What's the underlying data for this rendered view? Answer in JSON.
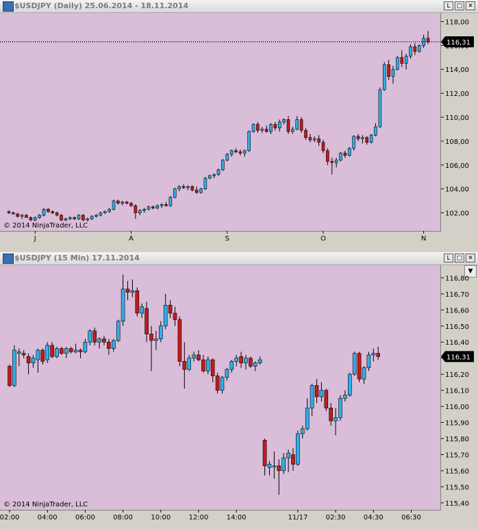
{
  "charts": [
    {
      "title": "$USDJPY (Daily)  25.06.2014 - 18.11.2014",
      "window_buttons": [
        "L",
        "□",
        "✕"
      ],
      "copyright": "© 2014 NinjaTrader, LLC",
      "last_price_label": "116,31",
      "y_tick_labels": [
        "102,00",
        "104,00",
        "106,00",
        "108,00",
        "110,00",
        "112,00",
        "114,00",
        "116,00",
        "118,00"
      ],
      "x_tick_labels": [
        "J",
        "A",
        "S",
        "O",
        "N"
      ],
      "colors": {
        "background": "#dabdd8",
        "up": "#32aee8",
        "down": "#c11c1c",
        "wick": "#000000",
        "price_line": "#000000",
        "panel": "#d4d0c8"
      }
    },
    {
      "title": "$USDJPY (15 Min)  17.11.2014",
      "window_buttons": [
        "L",
        "□",
        "✕"
      ],
      "dropdown_icon": "chevron-down-icon",
      "copyright": "© 2014 NinjaTrader, LLC",
      "last_price_label": "116,31",
      "y_tick_labels": [
        "115,40",
        "115,50",
        "115,60",
        "115,70",
        "115,80",
        "115,90",
        "116,00",
        "116,10",
        "116,20",
        "116,30",
        "116,40",
        "116,50",
        "116,60",
        "116,70",
        "116,80"
      ],
      "x_tick_labels": [
        "02:00",
        "04:00",
        "06:00",
        "08:00",
        "10:00",
        "12:00",
        "14:00",
        "11/17",
        "02:30",
        "04:30",
        "06:30"
      ],
      "colors": {
        "background": "#dabdd8",
        "up": "#32aee8",
        "down": "#c11c1c",
        "wick": "#000000",
        "panel": "#d4d0c8"
      }
    }
  ],
  "chart_data": [
    {
      "type": "candlestick",
      "title": "$USDJPY (Daily)  25.06.2014 - 18.11.2014",
      "y_range": [
        100.6,
        118.6
      ],
      "price_line": 116.31,
      "x_ticks": [
        {
          "label": "J",
          "index": 6
        },
        {
          "label": "A",
          "index": 28
        },
        {
          "label": "S",
          "index": 50
        },
        {
          "label": "O",
          "index": 72
        },
        {
          "label": "N",
          "index": 95
        }
      ],
      "candles": [
        [
          102.1,
          102.2,
          101.9,
          102.0
        ],
        [
          102.0,
          102.1,
          101.9,
          101.9
        ],
        [
          101.9,
          102.0,
          101.6,
          101.7
        ],
        [
          101.7,
          101.9,
          101.5,
          101.8
        ],
        [
          101.8,
          101.9,
          101.6,
          101.6
        ],
        [
          101.6,
          101.7,
          101.3,
          101.4
        ],
        [
          101.4,
          101.7,
          101.3,
          101.6
        ],
        [
          101.6,
          101.9,
          101.5,
          101.8
        ],
        [
          101.8,
          102.4,
          101.7,
          102.3
        ],
        [
          102.3,
          102.4,
          102.0,
          102.1
        ],
        [
          102.1,
          102.2,
          101.9,
          102.0
        ],
        [
          102.0,
          102.1,
          101.7,
          101.8
        ],
        [
          101.8,
          101.9,
          101.3,
          101.4
        ],
        [
          101.4,
          101.6,
          101.3,
          101.5
        ],
        [
          101.5,
          101.7,
          101.4,
          101.6
        ],
        [
          101.6,
          101.7,
          101.4,
          101.5
        ],
        [
          101.5,
          101.9,
          101.4,
          101.8
        ],
        [
          101.8,
          101.9,
          101.3,
          101.4
        ],
        [
          101.4,
          101.6,
          101.3,
          101.5
        ],
        [
          101.5,
          101.8,
          101.4,
          101.7
        ],
        [
          101.7,
          101.9,
          101.6,
          101.8
        ],
        [
          101.8,
          102.1,
          101.7,
          102.0
        ],
        [
          102.0,
          102.2,
          101.9,
          102.1
        ],
        [
          102.1,
          102.4,
          102.0,
          102.3
        ],
        [
          102.3,
          103.1,
          102.2,
          103.0
        ],
        [
          103.0,
          103.1,
          102.7,
          102.8
        ],
        [
          102.8,
          103.0,
          102.6,
          102.9
        ],
        [
          102.9,
          103.0,
          102.7,
          102.8
        ],
        [
          102.8,
          102.9,
          102.5,
          102.6
        ],
        [
          102.6,
          102.7,
          101.5,
          102.0
        ],
        [
          102.0,
          102.3,
          101.8,
          102.2
        ],
        [
          102.2,
          102.4,
          102.0,
          102.3
        ],
        [
          102.3,
          102.6,
          102.2,
          102.5
        ],
        [
          102.5,
          102.6,
          102.3,
          102.4
        ],
        [
          102.4,
          102.7,
          102.3,
          102.6
        ],
        [
          102.6,
          102.8,
          102.4,
          102.7
        ],
        [
          102.7,
          102.9,
          102.5,
          102.6
        ],
        [
          102.6,
          103.4,
          102.5,
          103.3
        ],
        [
          103.3,
          104.1,
          103.2,
          104.0
        ],
        [
          104.0,
          104.3,
          103.8,
          104.2
        ],
        [
          104.2,
          104.4,
          104.0,
          104.1
        ],
        [
          104.1,
          104.3,
          103.9,
          104.2
        ],
        [
          104.2,
          104.3,
          103.8,
          103.9
        ],
        [
          103.9,
          104.2,
          103.6,
          103.7
        ],
        [
          103.7,
          104.1,
          103.6,
          104.0
        ],
        [
          104.0,
          105.0,
          103.9,
          104.9
        ],
        [
          104.9,
          105.2,
          104.8,
          105.1
        ],
        [
          105.1,
          105.3,
          104.9,
          105.2
        ],
        [
          105.2,
          105.7,
          105.1,
          105.6
        ],
        [
          105.6,
          106.5,
          105.5,
          106.4
        ],
        [
          106.4,
          107.0,
          106.3,
          106.9
        ],
        [
          106.9,
          107.3,
          106.7,
          107.2
        ],
        [
          107.2,
          107.4,
          107.0,
          107.1
        ],
        [
          107.1,
          107.3,
          106.8,
          107.0
        ],
        [
          107.0,
          107.3,
          106.7,
          107.2
        ],
        [
          107.2,
          108.9,
          107.1,
          108.8
        ],
        [
          108.8,
          109.5,
          108.7,
          109.4
        ],
        [
          109.4,
          109.6,
          108.7,
          108.9
        ],
        [
          108.9,
          109.2,
          108.7,
          109.0
        ],
        [
          109.0,
          109.3,
          108.7,
          108.8
        ],
        [
          108.8,
          109.5,
          108.6,
          109.4
        ],
        [
          109.4,
          109.6,
          108.9,
          109.1
        ],
        [
          109.1,
          109.8,
          108.8,
          109.6
        ],
        [
          109.6,
          109.9,
          109.4,
          109.8
        ],
        [
          109.8,
          110.1,
          108.6,
          108.8
        ],
        [
          108.8,
          109.2,
          108.6,
          109.0
        ],
        [
          109.0,
          110.1,
          108.9,
          109.8
        ],
        [
          109.8,
          110.0,
          108.7,
          108.9
        ],
        [
          108.9,
          109.1,
          108.1,
          108.3
        ],
        [
          108.3,
          108.6,
          107.9,
          108.1
        ],
        [
          108.1,
          108.4,
          107.9,
          108.2
        ],
        [
          108.2,
          108.5,
          107.6,
          107.9
        ],
        [
          107.9,
          108.1,
          107.0,
          107.2
        ],
        [
          107.2,
          107.4,
          106.0,
          106.3
        ],
        [
          106.3,
          106.6,
          105.2,
          106.2
        ],
        [
          106.2,
          106.6,
          105.8,
          106.4
        ],
        [
          106.4,
          107.1,
          106.3,
          107.0
        ],
        [
          107.0,
          107.2,
          106.6,
          106.8
        ],
        [
          106.8,
          107.5,
          106.7,
          107.4
        ],
        [
          107.4,
          108.5,
          107.2,
          108.4
        ],
        [
          108.4,
          108.6,
          108.0,
          108.2
        ],
        [
          108.2,
          108.5,
          107.8,
          108.3
        ],
        [
          108.3,
          108.4,
          107.7,
          107.9
        ],
        [
          107.9,
          108.6,
          107.8,
          108.5
        ],
        [
          108.5,
          109.5,
          108.4,
          109.2
        ],
        [
          109.2,
          112.5,
          109.1,
          112.3
        ],
        [
          112.3,
          114.6,
          112.2,
          114.4
        ],
        [
          114.4,
          114.8,
          113.1,
          113.4
        ],
        [
          113.4,
          114.3,
          112.8,
          114.0
        ],
        [
          114.0,
          115.1,
          113.9,
          115.0
        ],
        [
          115.0,
          115.6,
          114.2,
          114.5
        ],
        [
          114.5,
          115.3,
          114.0,
          115.1
        ],
        [
          115.1,
          116.1,
          114.9,
          115.9
        ],
        [
          115.9,
          116.2,
          115.2,
          115.5
        ],
        [
          115.5,
          116.1,
          115.4,
          116.0
        ],
        [
          116.0,
          116.9,
          115.8,
          116.6
        ],
        [
          116.6,
          117.2,
          116.1,
          116.31
        ]
      ]
    },
    {
      "type": "candlestick",
      "title": "$USDJPY (15 Min)  17.11.2014",
      "y_range": [
        115.365,
        116.87
      ],
      "price_line": 116.31,
      "x_ticks": [
        {
          "label": "02:00",
          "index": 0
        },
        {
          "label": "04:00",
          "index": 8
        },
        {
          "label": "06:00",
          "index": 16
        },
        {
          "label": "08:00",
          "index": 24
        },
        {
          "label": "10:00",
          "index": 32
        },
        {
          "label": "12:00",
          "index": 40
        },
        {
          "label": "14:00",
          "index": 48
        },
        {
          "label": "11/17",
          "index": 61
        },
        {
          "label": "02:30",
          "index": 69
        },
        {
          "label": "04:30",
          "index": 77
        },
        {
          "label": "06:30",
          "index": 85
        }
      ],
      "candles": [
        [
          116.25,
          116.26,
          116.12,
          116.13
        ],
        [
          116.13,
          116.38,
          116.12,
          116.35
        ],
        [
          116.33,
          116.36,
          116.25,
          116.34
        ],
        [
          116.33,
          116.35,
          116.3,
          116.32
        ],
        [
          116.31,
          116.33,
          116.2,
          116.27
        ],
        [
          116.27,
          116.32,
          116.24,
          116.3
        ],
        [
          116.29,
          116.36,
          116.21,
          116.35
        ],
        [
          116.35,
          116.36,
          116.26,
          116.28
        ],
        [
          116.29,
          116.4,
          116.27,
          116.38
        ],
        [
          116.38,
          116.4,
          116.3,
          116.31
        ],
        [
          116.31,
          116.37,
          116.3,
          116.36
        ],
        [
          116.36,
          116.37,
          116.32,
          116.33
        ],
        [
          116.33,
          116.37,
          116.3,
          116.36
        ],
        [
          116.36,
          116.37,
          116.33,
          116.34
        ],
        [
          116.34,
          116.39,
          116.33,
          116.35
        ],
        [
          116.35,
          116.36,
          116.3,
          116.34
        ],
        [
          116.34,
          116.42,
          116.33,
          116.4
        ],
        [
          116.4,
          116.48,
          116.38,
          116.47
        ],
        [
          116.47,
          116.49,
          116.38,
          116.4
        ],
        [
          116.4,
          116.43,
          116.36,
          116.42
        ],
        [
          116.42,
          116.44,
          116.38,
          116.4
        ],
        [
          116.4,
          116.42,
          116.32,
          116.36
        ],
        [
          116.36,
          116.42,
          116.34,
          116.41
        ],
        [
          116.41,
          116.54,
          116.4,
          116.53
        ],
        [
          116.53,
          116.82,
          116.5,
          116.73
        ],
        [
          116.73,
          116.78,
          116.66,
          116.71
        ],
        [
          116.71,
          116.79,
          116.68,
          116.72
        ],
        [
          116.72,
          116.74,
          116.56,
          116.58
        ],
        [
          116.58,
          116.64,
          116.55,
          116.62
        ],
        [
          116.61,
          116.65,
          116.4,
          116.45
        ],
        [
          116.45,
          116.5,
          116.22,
          116.41
        ],
        [
          116.41,
          116.47,
          116.35,
          116.42
        ],
        [
          116.42,
          116.53,
          116.4,
          116.5
        ],
        [
          116.5,
          116.7,
          116.48,
          116.63
        ],
        [
          116.63,
          116.66,
          116.55,
          116.58
        ],
        [
          116.58,
          116.62,
          116.5,
          116.54
        ],
        [
          116.54,
          116.56,
          116.25,
          116.28
        ],
        [
          116.28,
          116.4,
          116.11,
          116.23
        ],
        [
          116.23,
          116.32,
          116.22,
          116.3
        ],
        [
          116.3,
          116.34,
          116.28,
          116.32
        ],
        [
          116.32,
          116.35,
          116.28,
          116.29
        ],
        [
          116.29,
          116.32,
          116.21,
          116.22
        ],
        [
          116.22,
          116.31,
          116.2,
          116.29
        ],
        [
          116.29,
          116.3,
          116.15,
          116.19
        ],
        [
          116.19,
          116.21,
          116.08,
          116.1
        ],
        [
          116.1,
          116.19,
          116.08,
          116.18
        ],
        [
          116.18,
          116.24,
          116.16,
          116.23
        ],
        [
          116.23,
          116.29,
          116.21,
          116.28
        ],
        [
          116.28,
          116.32,
          116.25,
          116.3
        ],
        [
          116.31,
          116.34,
          116.24,
          116.27
        ],
        [
          116.27,
          116.32,
          116.23,
          116.3
        ],
        [
          116.3,
          116.31,
          116.24,
          116.25
        ],
        [
          116.25,
          116.28,
          116.22,
          116.27
        ],
        [
          116.27,
          116.31,
          116.26,
          116.29
        ],
        [
          115.79,
          115.8,
          115.57,
          115.63
        ],
        [
          115.62,
          115.66,
          115.57,
          115.64
        ],
        [
          115.63,
          115.72,
          115.55,
          115.63
        ],
        [
          115.63,
          115.67,
          115.45,
          115.6
        ],
        [
          115.6,
          115.71,
          115.58,
          115.68
        ],
        [
          115.68,
          115.73,
          115.59,
          115.71
        ],
        [
          115.7,
          115.74,
          115.6,
          115.64
        ],
        [
          115.64,
          115.85,
          115.63,
          115.83
        ],
        [
          115.83,
          115.88,
          115.8,
          115.86
        ],
        [
          115.86,
          116.05,
          115.85,
          115.99
        ],
        [
          115.99,
          116.14,
          115.94,
          116.13
        ],
        [
          116.13,
          116.17,
          116.02,
          116.06
        ],
        [
          116.06,
          116.15,
          116.03,
          116.1
        ],
        [
          116.1,
          116.11,
          115.97,
          115.99
        ],
        [
          115.99,
          116.02,
          115.88,
          115.91
        ],
        [
          115.91,
          115.99,
          115.82,
          115.93
        ],
        [
          115.93,
          116.07,
          115.91,
          116.05
        ],
        [
          116.05,
          116.1,
          116.03,
          116.07
        ],
        [
          116.07,
          116.21,
          116.06,
          116.2
        ],
        [
          116.2,
          116.34,
          116.19,
          116.33
        ],
        [
          116.33,
          116.34,
          116.15,
          116.17
        ],
        [
          116.17,
          116.25,
          116.14,
          116.24
        ],
        [
          116.24,
          116.34,
          116.22,
          116.32
        ],
        [
          116.32,
          116.36,
          116.28,
          116.33
        ],
        [
          116.33,
          116.37,
          116.29,
          116.31
        ]
      ]
    }
  ]
}
